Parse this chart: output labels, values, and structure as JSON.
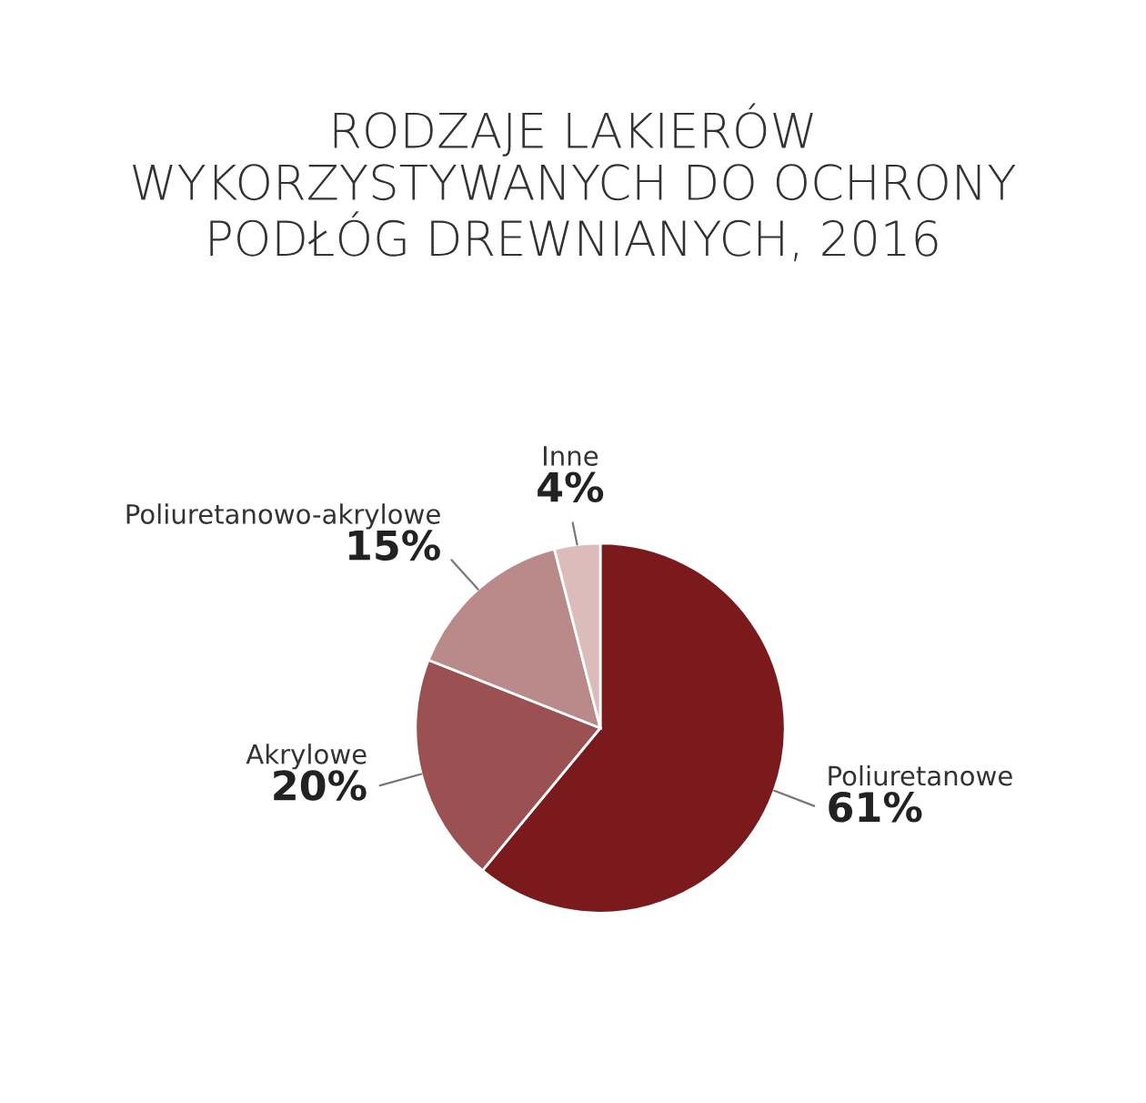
{
  "chart_data": {
    "type": "pie",
    "title": "RODZAJE LAKIERÓW\nWYKORZYSTYWANYCH DO OCHRONY\nPODŁÓG DREWNIANYCH, 2016",
    "categories": [
      "Poliuretanowe",
      "Akrylowe",
      "Poliuretanowo-akrylowe",
      "Inne"
    ],
    "values": [
      61,
      20,
      15,
      4
    ],
    "value_labels": [
      "61%",
      "20%",
      "15%",
      "4%"
    ],
    "colors": [
      "#7b1a1c",
      "#9b5152",
      "#b98a89",
      "#dcbcbb"
    ]
  }
}
